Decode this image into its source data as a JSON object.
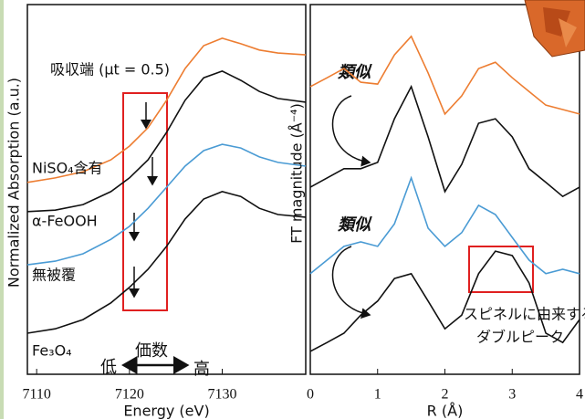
{
  "chart_data": [
    {
      "type": "line",
      "x_label": "Energy (eV)",
      "y_label": "Normalized Absorption (a.u.)",
      "x": [
        7109,
        7112,
        7115,
        7118,
        7120,
        7122,
        7124,
        7126,
        7128,
        7130,
        7132,
        7134,
        7136,
        7139
      ],
      "xlim": [
        7109,
        7139
      ],
      "xticks": [
        7110,
        7120,
        7130
      ],
      "ylim": [
        0,
        10
      ],
      "series": [
        {
          "name": "NiSO₄含有",
          "color": "#ed7d31",
          "values": [
            5.19,
            5.31,
            5.48,
            5.8,
            6.17,
            6.67,
            7.41,
            8.27,
            8.89,
            9.09,
            8.94,
            8.77,
            8.69,
            8.64
          ]
        },
        {
          "name": "α-FeOOH",
          "color": "#111111",
          "values": [
            4.4,
            4.44,
            4.59,
            4.94,
            5.31,
            5.8,
            6.54,
            7.41,
            8.02,
            8.2,
            7.95,
            7.65,
            7.46,
            7.36
          ]
        },
        {
          "name": "無被覆",
          "color": "#4a9bd4",
          "values": [
            2.96,
            3.06,
            3.26,
            3.65,
            4.0,
            4.49,
            5.06,
            5.63,
            6.05,
            6.22,
            6.12,
            5.88,
            5.73,
            5.63
          ]
        },
        {
          "name": "Fe₃O₄",
          "color": "#111111",
          "values": [
            1.11,
            1.23,
            1.48,
            1.93,
            2.35,
            2.84,
            3.46,
            4.2,
            4.74,
            4.94,
            4.81,
            4.49,
            4.32,
            4.25
          ]
        }
      ],
      "annotations": [
        "吸収端 (μt = 0.5)",
        "価数",
        "低",
        "高"
      ]
    },
    {
      "type": "line",
      "x_label": "R (Å)",
      "y_label": "FT magnitude (Å⁻⁴)",
      "x": [
        0,
        0.25,
        0.5,
        0.75,
        1.0,
        1.25,
        1.5,
        1.75,
        2.0,
        2.25,
        2.5,
        2.75,
        3.0,
        3.25,
        3.5,
        3.75,
        4.0
      ],
      "xlim": [
        0,
        4
      ],
      "xticks": [
        0,
        1,
        2,
        3,
        4
      ],
      "ylim": [
        0,
        10
      ],
      "series": [
        {
          "color": "#ed7d31",
          "values": [
            7.78,
            8.02,
            8.27,
            7.9,
            7.85,
            8.64,
            9.14,
            8.15,
            7.04,
            7.53,
            8.27,
            8.44,
            8.02,
            7.65,
            7.28,
            7.16,
            7.04
          ]
        },
        {
          "color": "#111111",
          "values": [
            5.06,
            5.31,
            5.56,
            5.56,
            5.73,
            6.91,
            7.78,
            6.42,
            4.94,
            5.68,
            6.79,
            6.91,
            6.42,
            5.56,
            5.19,
            4.81,
            5.06
          ]
        },
        {
          "color": "#4a9bd4",
          "values": [
            2.72,
            3.09,
            3.46,
            3.58,
            3.46,
            4.07,
            5.31,
            3.95,
            3.46,
            3.83,
            4.57,
            4.32,
            3.7,
            3.09,
            2.72,
            2.84,
            2.72
          ]
        },
        {
          "color": "#111111",
          "values": [
            0.62,
            0.86,
            1.11,
            1.6,
            1.98,
            2.59,
            2.72,
            1.98,
            1.23,
            1.6,
            2.72,
            3.33,
            3.21,
            2.47,
            1.11,
            0.86,
            1.48
          ]
        }
      ],
      "annotations": [
        "類似",
        "類似",
        "スピネルに由来する",
        "ダブルピーク"
      ]
    }
  ]
}
